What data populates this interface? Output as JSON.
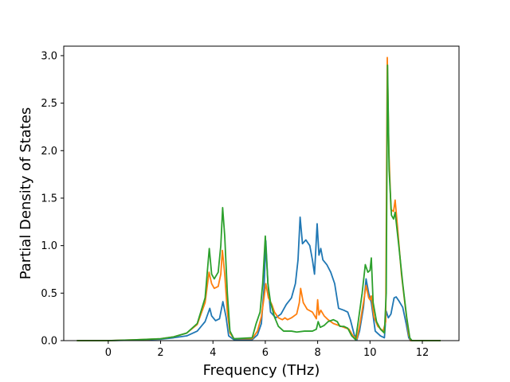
{
  "chart_data": {
    "type": "line",
    "title": "",
    "xlabel": "Frequency (THz)",
    "ylabel": "Partial Density of States",
    "xlim": [
      -1.7,
      13.4
    ],
    "ylim": [
      0.0,
      3.1
    ],
    "xticks": [
      0,
      2,
      4,
      6,
      8,
      10,
      12
    ],
    "yticks": [
      0.0,
      0.5,
      1.0,
      1.5,
      2.0,
      2.5,
      3.0
    ],
    "xtick_labels": [
      "0",
      "2",
      "4",
      "6",
      "8",
      "10",
      "12"
    ],
    "ytick_labels": [
      "0.0",
      "0.5",
      "1.0",
      "1.5",
      "2.0",
      "2.5",
      "3.0"
    ],
    "grid": false,
    "legend": "none",
    "series": [
      {
        "color": "#1f77b4",
        "points": [
          [
            -1.2,
            0
          ],
          [
            0,
            0
          ],
          [
            1,
            0.005
          ],
          [
            2,
            0.015
          ],
          [
            2.5,
            0.03
          ],
          [
            3,
            0.05
          ],
          [
            3.4,
            0.1
          ],
          [
            3.7,
            0.2
          ],
          [
            3.88,
            0.34
          ],
          [
            3.95,
            0.26
          ],
          [
            4.1,
            0.21
          ],
          [
            4.25,
            0.23
          ],
          [
            4.38,
            0.41
          ],
          [
            4.5,
            0.25
          ],
          [
            4.6,
            0.05
          ],
          [
            4.8,
            0.01
          ],
          [
            5.5,
            0.01
          ],
          [
            5.7,
            0.06
          ],
          [
            5.85,
            0.18
          ],
          [
            5.95,
            0.55
          ],
          [
            6.02,
            1.05
          ],
          [
            6.1,
            0.6
          ],
          [
            6.2,
            0.3
          ],
          [
            6.4,
            0.24
          ],
          [
            6.6,
            0.28
          ],
          [
            6.8,
            0.38
          ],
          [
            7.0,
            0.45
          ],
          [
            7.15,
            0.6
          ],
          [
            7.25,
            0.85
          ],
          [
            7.33,
            1.3
          ],
          [
            7.42,
            1.02
          ],
          [
            7.55,
            1.06
          ],
          [
            7.7,
            1.0
          ],
          [
            7.8,
            0.85
          ],
          [
            7.88,
            0.7
          ],
          [
            7.98,
            1.23
          ],
          [
            8.05,
            0.9
          ],
          [
            8.12,
            0.97
          ],
          [
            8.2,
            0.85
          ],
          [
            8.35,
            0.8
          ],
          [
            8.5,
            0.72
          ],
          [
            8.65,
            0.6
          ],
          [
            8.8,
            0.34
          ],
          [
            9.0,
            0.32
          ],
          [
            9.15,
            0.3
          ],
          [
            9.25,
            0.22
          ],
          [
            9.4,
            0.06
          ],
          [
            9.5,
            0.01
          ],
          [
            9.6,
            0.1
          ],
          [
            9.75,
            0.35
          ],
          [
            9.85,
            0.65
          ],
          [
            9.95,
            0.5
          ],
          [
            10.05,
            0.4
          ],
          [
            10.2,
            0.1
          ],
          [
            10.4,
            0.05
          ],
          [
            10.55,
            0.03
          ],
          [
            10.62,
            0.31
          ],
          [
            10.7,
            0.24
          ],
          [
            10.8,
            0.28
          ],
          [
            10.92,
            0.45
          ],
          [
            11.0,
            0.46
          ],
          [
            11.1,
            0.42
          ],
          [
            11.25,
            0.35
          ],
          [
            11.38,
            0.18
          ],
          [
            11.48,
            0.03
          ],
          [
            11.55,
            0
          ],
          [
            12.7,
            0
          ]
        ]
      },
      {
        "color": "#ff7f0e",
        "points": [
          [
            -1.2,
            0
          ],
          [
            0,
            0
          ],
          [
            1,
            0.008
          ],
          [
            2,
            0.02
          ],
          [
            2.5,
            0.04
          ],
          [
            3,
            0.08
          ],
          [
            3.4,
            0.17
          ],
          [
            3.7,
            0.4
          ],
          [
            3.85,
            0.72
          ],
          [
            3.95,
            0.6
          ],
          [
            4.05,
            0.55
          ],
          [
            4.2,
            0.57
          ],
          [
            4.3,
            0.7
          ],
          [
            4.36,
            0.95
          ],
          [
            4.45,
            0.7
          ],
          [
            4.55,
            0.3
          ],
          [
            4.65,
            0.08
          ],
          [
            4.8,
            0.02
          ],
          [
            5.5,
            0.02
          ],
          [
            5.7,
            0.1
          ],
          [
            5.85,
            0.25
          ],
          [
            5.95,
            0.45
          ],
          [
            6.02,
            0.6
          ],
          [
            6.12,
            0.45
          ],
          [
            6.25,
            0.38
          ],
          [
            6.35,
            0.3
          ],
          [
            6.5,
            0.24
          ],
          [
            6.65,
            0.22
          ],
          [
            6.75,
            0.24
          ],
          [
            6.85,
            0.22
          ],
          [
            7.0,
            0.24
          ],
          [
            7.2,
            0.28
          ],
          [
            7.3,
            0.4
          ],
          [
            7.35,
            0.55
          ],
          [
            7.45,
            0.4
          ],
          [
            7.6,
            0.33
          ],
          [
            7.8,
            0.3
          ],
          [
            7.95,
            0.23
          ],
          [
            8.0,
            0.43
          ],
          [
            8.05,
            0.27
          ],
          [
            8.12,
            0.32
          ],
          [
            8.25,
            0.26
          ],
          [
            8.4,
            0.22
          ],
          [
            8.6,
            0.18
          ],
          [
            8.8,
            0.16
          ],
          [
            9.0,
            0.14
          ],
          [
            9.2,
            0.12
          ],
          [
            9.35,
            0.05
          ],
          [
            9.5,
            0.02
          ],
          [
            9.6,
            0.15
          ],
          [
            9.75,
            0.4
          ],
          [
            9.85,
            0.58
          ],
          [
            9.95,
            0.45
          ],
          [
            10.0,
            0.43
          ],
          [
            10.05,
            0.47
          ],
          [
            10.15,
            0.25
          ],
          [
            10.3,
            0.15
          ],
          [
            10.5,
            0.1
          ],
          [
            10.6,
            0.2
          ],
          [
            10.66,
            2.98
          ],
          [
            10.72,
            2.0
          ],
          [
            10.8,
            1.38
          ],
          [
            10.9,
            1.36
          ],
          [
            10.96,
            1.48
          ],
          [
            11.05,
            1.2
          ],
          [
            11.2,
            0.7
          ],
          [
            11.35,
            0.35
          ],
          [
            11.48,
            0.06
          ],
          [
            11.55,
            0
          ],
          [
            12.7,
            0
          ]
        ]
      },
      {
        "color": "#2ca02c",
        "points": [
          [
            -1.2,
            0
          ],
          [
            0,
            0
          ],
          [
            1,
            0.008
          ],
          [
            2,
            0.02
          ],
          [
            2.5,
            0.04
          ],
          [
            3,
            0.08
          ],
          [
            3.4,
            0.18
          ],
          [
            3.7,
            0.45
          ],
          [
            3.86,
            0.97
          ],
          [
            3.95,
            0.7
          ],
          [
            4.05,
            0.65
          ],
          [
            4.2,
            0.72
          ],
          [
            4.3,
            1.0
          ],
          [
            4.37,
            1.4
          ],
          [
            4.45,
            1.1
          ],
          [
            4.55,
            0.5
          ],
          [
            4.65,
            0.1
          ],
          [
            4.8,
            0.02
          ],
          [
            5.5,
            0.03
          ],
          [
            5.65,
            0.18
          ],
          [
            5.8,
            0.3
          ],
          [
            5.9,
            0.6
          ],
          [
            6.0,
            1.1
          ],
          [
            6.1,
            0.6
          ],
          [
            6.2,
            0.4
          ],
          [
            6.35,
            0.25
          ],
          [
            6.5,
            0.15
          ],
          [
            6.7,
            0.1
          ],
          [
            7.0,
            0.1
          ],
          [
            7.2,
            0.09
          ],
          [
            7.5,
            0.1
          ],
          [
            7.8,
            0.1
          ],
          [
            7.95,
            0.12
          ],
          [
            8.02,
            0.2
          ],
          [
            8.1,
            0.14
          ],
          [
            8.25,
            0.16
          ],
          [
            8.4,
            0.2
          ],
          [
            8.6,
            0.22
          ],
          [
            8.75,
            0.2
          ],
          [
            8.85,
            0.15
          ],
          [
            9.0,
            0.15
          ],
          [
            9.15,
            0.13
          ],
          [
            9.3,
            0.05
          ],
          [
            9.45,
            0.01
          ],
          [
            9.55,
            0.2
          ],
          [
            9.7,
            0.5
          ],
          [
            9.82,
            0.8
          ],
          [
            9.92,
            0.72
          ],
          [
            10.0,
            0.74
          ],
          [
            10.05,
            0.87
          ],
          [
            10.12,
            0.4
          ],
          [
            10.25,
            0.2
          ],
          [
            10.4,
            0.12
          ],
          [
            10.55,
            0.08
          ],
          [
            10.62,
            0.5
          ],
          [
            10.67,
            2.9
          ],
          [
            10.73,
            1.8
          ],
          [
            10.82,
            1.32
          ],
          [
            10.9,
            1.28
          ],
          [
            10.96,
            1.35
          ],
          [
            11.1,
            1.0
          ],
          [
            11.25,
            0.6
          ],
          [
            11.4,
            0.25
          ],
          [
            11.52,
            0.03
          ],
          [
            11.6,
            0
          ],
          [
            12.7,
            0
          ]
        ]
      }
    ]
  }
}
